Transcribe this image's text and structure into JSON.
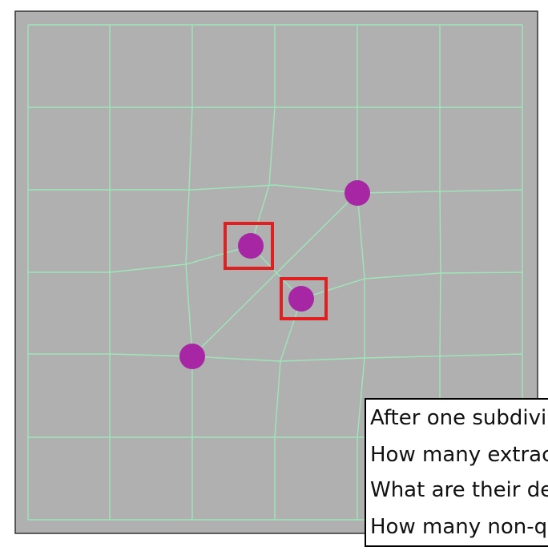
{
  "viewport": {
    "background_color": "#ffffff",
    "panel_color": "#b0b0b0",
    "panel_border_color": "#333333",
    "mesh_color": "#9ee6b9",
    "vertex_color": "#a626a4",
    "highlight_color": "#e02020"
  },
  "mesh": {
    "description_icon": "quad-mesh-grid",
    "extraordinary_vertex_icon": "vertex-dot",
    "highlight_icon": "selection-square"
  },
  "questions": {
    "line_1": "After one subdivi",
    "line_2": "How many extrac",
    "line_3": "What are their de",
    "line_4": "How many non-q"
  }
}
